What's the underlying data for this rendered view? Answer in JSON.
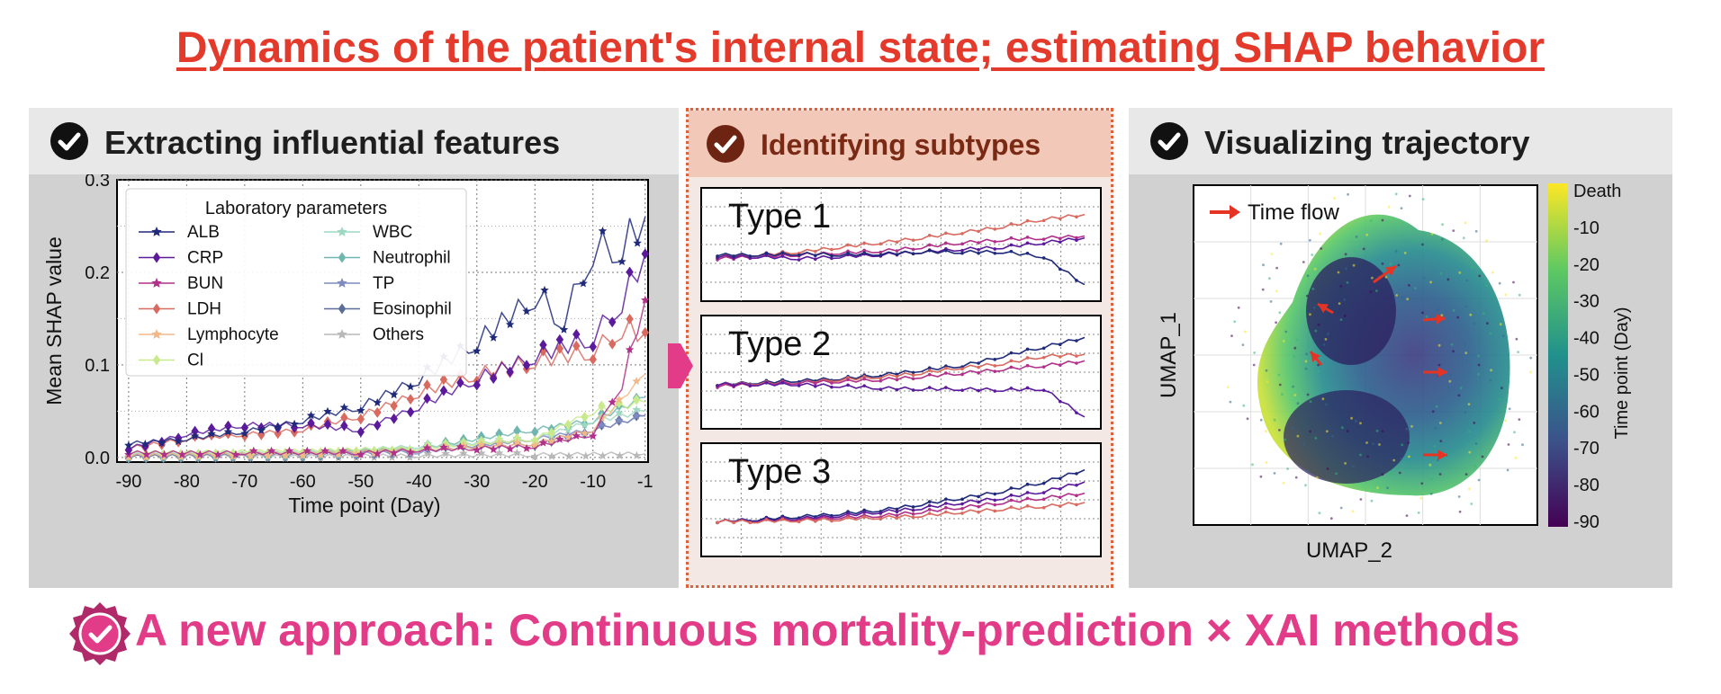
{
  "title": "Dynamics of the patient's internal state; estimating SHAP behavior",
  "panels": {
    "extract": "Extracting influential features",
    "subtypes": "Identifying subtypes",
    "trajectory": "Visualizing trajectory"
  },
  "bottom_text": "A new approach: Continuous mortality-prediction × XAI methods",
  "colors": {
    "title": "#e33a2c",
    "bottom": "#e23b87"
  },
  "chart_data": [
    {
      "type": "line",
      "xlabel": "Time point (Day)",
      "ylabel": "Mean SHAP value",
      "xlim": [
        -92,
        -0.5
      ],
      "ylim": [
        -0.005,
        0.3
      ],
      "xticks": [
        "-90",
        "-80",
        "-70",
        "-60",
        "-50",
        "-40",
        "-30",
        "-20",
        "-10",
        "-1"
      ],
      "yticks": [
        "0.0",
        "0.1",
        "0.2",
        "0.3"
      ],
      "legend_title": "Laboratory parameters",
      "legend_placement": "top-left",
      "grid": true,
      "series": [
        {
          "name": "ALB",
          "color": "#1f2a7a",
          "marker": "star",
          "values": [
            [
              -90,
              0.015
            ],
            [
              -80,
              0.02
            ],
            [
              -70,
              0.028
            ],
            [
              -60,
              0.04
            ],
            [
              -50,
              0.055
            ],
            [
              -40,
              0.085
            ],
            [
              -30,
              0.125
            ],
            [
              -20,
              0.175
            ],
            [
              -15,
              0.15
            ],
            [
              -10,
              0.225
            ],
            [
              -5,
              0.23
            ],
            [
              -1,
              0.26
            ]
          ]
        },
        {
          "name": "CRP",
          "color": "#5b1a9c",
          "marker": "diamond",
          "values": [
            [
              -90,
              0.01
            ],
            [
              -80,
              0.025
            ],
            [
              -70,
              0.035
            ],
            [
              -60,
              0.035
            ],
            [
              -50,
              0.03
            ],
            [
              -40,
              0.055
            ],
            [
              -30,
              0.085
            ],
            [
              -20,
              0.11
            ],
            [
              -10,
              0.13
            ],
            [
              -5,
              0.17
            ],
            [
              -1,
              0.22
            ]
          ]
        },
        {
          "name": "BUN",
          "color": "#b0308a",
          "marker": "star",
          "values": [
            [
              -90,
              0.005
            ],
            [
              -70,
              0.005
            ],
            [
              -50,
              0.005
            ],
            [
              -40,
              0.008
            ],
            [
              -30,
              0.01
            ],
            [
              -20,
              0.012
            ],
            [
              -10,
              0.025
            ],
            [
              -5,
              0.08
            ],
            [
              -1,
              0.17
            ]
          ]
        },
        {
          "name": "LDH",
          "color": "#d96a5f",
          "marker": "diamond",
          "values": [
            [
              -90,
              0.01
            ],
            [
              -80,
              0.02
            ],
            [
              -70,
              0.025
            ],
            [
              -60,
              0.03
            ],
            [
              -50,
              0.045
            ],
            [
              -40,
              0.07
            ],
            [
              -30,
              0.09
            ],
            [
              -20,
              0.105
            ],
            [
              -10,
              0.115
            ],
            [
              -5,
              0.14
            ],
            [
              -1,
              0.135
            ]
          ]
        },
        {
          "name": "Lymphocyte",
          "color": "#f3b888",
          "marker": "star",
          "values": [
            [
              -90,
              0.002
            ],
            [
              -60,
              0.004
            ],
            [
              -40,
              0.008
            ],
            [
              -20,
              0.015
            ],
            [
              -10,
              0.03
            ],
            [
              -1,
              0.09
            ]
          ]
        },
        {
          "name": "Cl",
          "color": "#c9ea8c",
          "marker": "diamond",
          "values": [
            [
              -90,
              0.005
            ],
            [
              -60,
              0.007
            ],
            [
              -40,
              0.01
            ],
            [
              -20,
              0.02
            ],
            [
              -10,
              0.05
            ],
            [
              -1,
              0.06
            ]
          ]
        },
        {
          "name": "WBC",
          "color": "#9dd8c2",
          "marker": "star",
          "values": [
            [
              -90,
              0.003
            ],
            [
              -60,
              0.005
            ],
            [
              -40,
              0.012
            ],
            [
              -20,
              0.02
            ],
            [
              -10,
              0.04
            ],
            [
              -1,
              0.05
            ]
          ]
        },
        {
          "name": "Neutrophil",
          "color": "#6fb6b0",
          "marker": "diamond",
          "values": [
            [
              -90,
              0.002
            ],
            [
              -60,
              0.004
            ],
            [
              -40,
              0.01
            ],
            [
              -20,
              0.03
            ],
            [
              -10,
              0.04
            ],
            [
              -1,
              0.065
            ]
          ]
        },
        {
          "name": "TP",
          "color": "#7e8ac0",
          "marker": "star",
          "values": [
            [
              -90,
              0.002
            ],
            [
              -60,
              0.003
            ],
            [
              -40,
              0.006
            ],
            [
              -20,
              0.02
            ],
            [
              -10,
              0.03
            ],
            [
              -1,
              0.045
            ]
          ]
        },
        {
          "name": "Eosinophil",
          "color": "#5c6d9a",
          "marker": "diamond",
          "values": [
            [
              -90,
              0.001
            ],
            [
              -60,
              0.003
            ],
            [
              -40,
              0.008
            ],
            [
              -20,
              0.015
            ],
            [
              -10,
              0.03
            ],
            [
              -1,
              0.045
            ]
          ]
        },
        {
          "name": "Others",
          "color": "#b8b8b8",
          "marker": "star",
          "values": [
            [
              -90,
              0.001
            ],
            [
              -60,
              0.001
            ],
            [
              -40,
              0.002
            ],
            [
              -20,
              0.003
            ],
            [
              -1,
              0.004
            ]
          ]
        }
      ]
    },
    {
      "type": "line",
      "subplots": [
        {
          "label": "Type 1",
          "series": [
            {
              "color": "#d96a5f",
              "values": [
                0.4,
                0.42,
                0.45,
                0.5,
                0.55,
                0.6,
                0.66,
                0.72,
                0.8,
                0.85
              ]
            },
            {
              "color": "#b0308a",
              "values": [
                0.38,
                0.4,
                0.42,
                0.44,
                0.46,
                0.5,
                0.55,
                0.58,
                0.6,
                0.62
              ]
            },
            {
              "color": "#5b1a9c",
              "values": [
                0.4,
                0.4,
                0.38,
                0.4,
                0.42,
                0.45,
                0.48,
                0.5,
                0.55,
                0.6
              ]
            },
            {
              "color": "#1f2a7a",
              "values": [
                0.42,
                0.42,
                0.43,
                0.42,
                0.43,
                0.45,
                0.45,
                0.45,
                0.4,
                0.1
              ]
            }
          ]
        },
        {
          "label": "Type 2",
          "series": [
            {
              "color": "#1f2a7a",
              "values": [
                0.4,
                0.42,
                0.44,
                0.46,
                0.5,
                0.55,
                0.6,
                0.7,
                0.8,
                0.9
              ]
            },
            {
              "color": "#d96a5f",
              "values": [
                0.4,
                0.41,
                0.42,
                0.45,
                0.48,
                0.52,
                0.58,
                0.62,
                0.7,
                0.72
              ]
            },
            {
              "color": "#b0308a",
              "values": [
                0.38,
                0.4,
                0.42,
                0.43,
                0.45,
                0.48,
                0.52,
                0.56,
                0.6,
                0.65
              ]
            },
            {
              "color": "#5b1a9c",
              "values": [
                0.4,
                0.4,
                0.4,
                0.38,
                0.36,
                0.35,
                0.35,
                0.34,
                0.35,
                0.05
              ]
            }
          ]
        },
        {
          "label": "Type 3",
          "series": [
            {
              "color": "#1f2a7a",
              "values": [
                0.3,
                0.32,
                0.35,
                0.38,
                0.42,
                0.48,
                0.55,
                0.62,
                0.72,
                0.85
              ]
            },
            {
              "color": "#5b1a9c",
              "values": [
                0.3,
                0.31,
                0.33,
                0.36,
                0.4,
                0.44,
                0.5,
                0.55,
                0.62,
                0.72
              ]
            },
            {
              "color": "#b0308a",
              "values": [
                0.3,
                0.3,
                0.32,
                0.34,
                0.36,
                0.4,
                0.45,
                0.5,
                0.55,
                0.6
              ]
            },
            {
              "color": "#d96a5f",
              "values": [
                0.3,
                0.3,
                0.31,
                0.32,
                0.34,
                0.36,
                0.4,
                0.43,
                0.46,
                0.5
              ]
            }
          ]
        }
      ]
    },
    {
      "type": "scatter",
      "xlabel": "UMAP_2",
      "ylabel": "UMAP_1",
      "annotation": "Time flow",
      "colorbar_label": "Time point (Day)",
      "colorbar_ticks": [
        "Death",
        "-10",
        "-20",
        "-30",
        "-40",
        "-50",
        "-60",
        "-70",
        "-80",
        "-90"
      ]
    }
  ]
}
